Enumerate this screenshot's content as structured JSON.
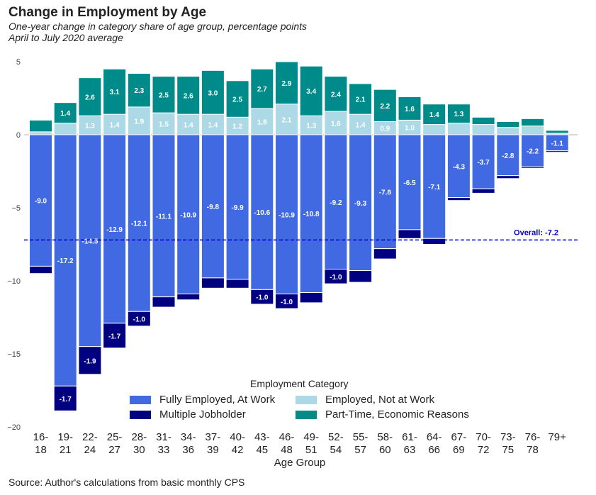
{
  "title": "Change in Employment by Age",
  "subtitle": "One-year change in category share of age group, percentage points",
  "subtitle2": "April to July 2020 average",
  "source": "Source: Author's calculations from basic monthly CPS",
  "legend": {
    "title": "Employment Category",
    "items": [
      {
        "name": "Fully Employed, At Work",
        "color": "#4169E1"
      },
      {
        "name": "Employed, Not at Work",
        "color": "#ADD8E6"
      },
      {
        "name": "Multiple Jobholder",
        "color": "#000080"
      },
      {
        "name": "Part-Time, Economic Reasons",
        "color": "#008B8B"
      }
    ]
  },
  "chart_data": {
    "type": "bar",
    "stacked": true,
    "xlabel": "Age Group",
    "ylabel": "",
    "ylim": [
      -20,
      5
    ],
    "yticks": [
      5,
      0,
      -5,
      -10,
      -15,
      -20
    ],
    "ytick_labels": [
      "5",
      "0",
      "−5",
      "−10",
      "−15",
      "−20"
    ],
    "categories": [
      "16-18",
      "19-21",
      "22-24",
      "25-27",
      "28-30",
      "31-33",
      "34-36",
      "37-39",
      "40-42",
      "43-45",
      "46-48",
      "49-51",
      "52-54",
      "55-57",
      "58-60",
      "61-63",
      "64-66",
      "67-69",
      "70-72",
      "73-75",
      "76-78",
      "79+"
    ],
    "series": [
      {
        "name": "Fully Employed, At Work",
        "color": "#4169E1",
        "values": [
          -9.0,
          -17.2,
          -14.5,
          -12.9,
          -12.1,
          -11.1,
          -10.9,
          -9.8,
          -9.9,
          -10.6,
          -10.9,
          -10.8,
          -9.2,
          -9.3,
          -7.8,
          -6.5,
          -7.1,
          -4.3,
          -3.7,
          -2.8,
          -2.2,
          -1.1
        ],
        "labels": [
          "-9.0",
          "-17.2",
          "-14.5",
          "-12.9",
          "-12.1",
          "-11.1",
          "-10.9",
          "-9.8",
          "-9.9",
          "-10.6",
          "-10.9",
          "-10.8",
          "-9.2",
          "-9.3",
          "-7.8",
          "-6.5",
          "-7.1",
          "-4.3",
          "-3.7",
          "-2.8",
          "-2.2",
          "-1.1"
        ]
      },
      {
        "name": "Multiple Jobholder",
        "color": "#000080",
        "values": [
          -0.5,
          -1.7,
          -1.9,
          -1.7,
          -1.0,
          -0.7,
          -0.4,
          -0.7,
          -0.6,
          -1.0,
          -1.0,
          -0.7,
          -1.0,
          -0.8,
          -0.7,
          -0.6,
          -0.4,
          -0.2,
          -0.3,
          -0.2,
          -0.1,
          -0.1
        ],
        "labels": [
          "",
          "-1.7",
          "-1.9",
          "-1.7",
          "-1.0",
          "",
          "",
          "",
          "",
          "-1.0",
          "-1.0",
          "",
          "-1.0",
          "",
          "",
          "",
          "",
          "",
          "",
          "",
          "",
          ""
        ]
      },
      {
        "name": "Employed, Not at Work",
        "color": "#ADD8E6",
        "values": [
          0.2,
          0.8,
          1.3,
          1.4,
          1.9,
          1.5,
          1.4,
          1.4,
          1.2,
          1.8,
          2.1,
          1.3,
          1.6,
          1.4,
          0.9,
          1.0,
          0.7,
          0.8,
          0.7,
          0.5,
          0.6,
          0.1
        ],
        "labels": [
          "",
          "",
          "1.3",
          "1.4",
          "1.9",
          "1.5",
          "1.4",
          "1.4",
          "1.2",
          "1.8",
          "2.1",
          "1.3",
          "1.6",
          "1.4",
          "0.9",
          "1.0",
          "",
          "",
          "",
          "",
          "",
          ""
        ]
      },
      {
        "name": "Part-Time, Economic Reasons",
        "color": "#008B8B",
        "values": [
          0.8,
          1.4,
          2.6,
          3.1,
          2.3,
          2.5,
          2.6,
          3.0,
          2.5,
          2.7,
          2.9,
          3.4,
          2.4,
          2.1,
          2.2,
          1.6,
          1.4,
          1.3,
          0.5,
          0.4,
          0.5,
          0.2
        ],
        "labels": [
          "",
          "1.4",
          "2.6",
          "3.1",
          "2.3",
          "2.5",
          "2.6",
          "3.0",
          "2.5",
          "2.7",
          "2.9",
          "3.4",
          "2.4",
          "2.1",
          "2.2",
          "1.6",
          "1.4",
          "1.3",
          "",
          "",
          "",
          ""
        ]
      }
    ],
    "reference_line": {
      "value": -7.2,
      "label": "Overall: -7.2",
      "color": "#0000CD"
    },
    "grid": false,
    "legend_position": "bottom"
  }
}
